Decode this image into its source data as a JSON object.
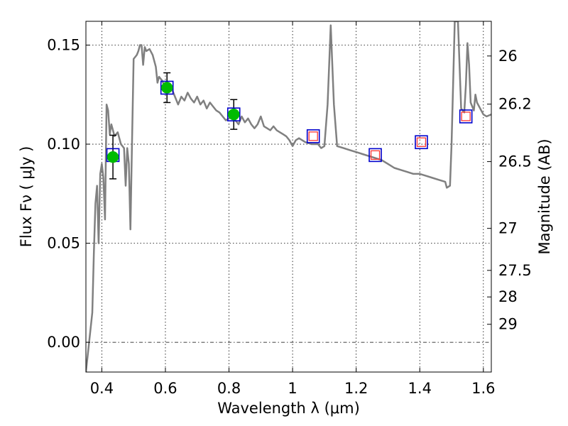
{
  "chart_data": {
    "type": "scatter",
    "xlabel": "Wavelength  λ (μm)",
    "ylabel": "Flux  Fν ( μJy )",
    "y2label": "Magnitude (AB)",
    "xlim": [
      0.35,
      1.625
    ],
    "ylim": [
      -0.015,
      0.162
    ],
    "x_ticks": [
      0.4,
      0.6,
      0.8,
      1.0,
      1.2,
      1.4,
      1.6
    ],
    "x_tick_labels": [
      "0.4",
      "0.6",
      "0.8",
      "1",
      "1.2",
      "1.4",
      "1.6"
    ],
    "y_ticks": [
      0.0,
      0.05,
      0.1,
      0.15
    ],
    "y_tick_labels": [
      "0.00",
      "0.05",
      "0.10",
      "0.15"
    ],
    "magnitude_ticks": [
      {
        "label": "26",
        "flux": 0.1445
      },
      {
        "label": "26.2",
        "flux": 0.1202
      },
      {
        "label": "26.5",
        "flux": 0.0912
      },
      {
        "label": "27",
        "flux": 0.0575
      },
      {
        "label": "27.5",
        "flux": 0.0363
      },
      {
        "label": "28",
        "flux": 0.0229
      },
      {
        "label": "29",
        "flux": 0.0091
      }
    ],
    "grid": true,
    "grid_x": [
      0.4,
      0.6,
      0.8,
      1.0,
      1.2,
      1.4,
      1.6
    ],
    "grid_y": [
      0.05,
      0.1,
      0.15
    ],
    "zero_line": 0.0,
    "series": [
      {
        "kind": "line",
        "color": "#808080",
        "points": [
          [
            0.35,
            -0.015
          ],
          [
            0.36,
            0.0
          ],
          [
            0.37,
            0.015
          ],
          [
            0.375,
            0.045
          ],
          [
            0.38,
            0.07
          ],
          [
            0.385,
            0.079
          ],
          [
            0.39,
            0.05
          ],
          [
            0.395,
            0.085
          ],
          [
            0.4,
            0.09
          ],
          [
            0.405,
            0.083
          ],
          [
            0.41,
            0.062
          ],
          [
            0.415,
            0.12
          ],
          [
            0.42,
            0.117
          ],
          [
            0.425,
            0.105
          ],
          [
            0.43,
            0.11
          ],
          [
            0.435,
            0.107
          ],
          [
            0.44,
            0.104
          ],
          [
            0.45,
            0.106
          ],
          [
            0.46,
            0.1
          ],
          [
            0.47,
            0.098
          ],
          [
            0.475,
            0.079
          ],
          [
            0.48,
            0.098
          ],
          [
            0.485,
            0.09
          ],
          [
            0.49,
            0.057
          ],
          [
            0.495,
            0.1
          ],
          [
            0.5,
            0.143
          ],
          [
            0.51,
            0.145
          ],
          [
            0.515,
            0.147
          ],
          [
            0.52,
            0.15
          ],
          [
            0.525,
            0.15
          ],
          [
            0.53,
            0.14
          ],
          [
            0.535,
            0.149
          ],
          [
            0.54,
            0.147
          ],
          [
            0.55,
            0.148
          ],
          [
            0.56,
            0.145
          ],
          [
            0.57,
            0.139
          ],
          [
            0.575,
            0.131
          ],
          [
            0.58,
            0.134
          ],
          [
            0.59,
            0.132
          ],
          [
            0.6,
            0.128
          ],
          [
            0.61,
            0.127
          ],
          [
            0.62,
            0.128
          ],
          [
            0.63,
            0.124
          ],
          [
            0.64,
            0.12
          ],
          [
            0.65,
            0.124
          ],
          [
            0.66,
            0.122
          ],
          [
            0.67,
            0.126
          ],
          [
            0.68,
            0.123
          ],
          [
            0.69,
            0.121
          ],
          [
            0.7,
            0.124
          ],
          [
            0.71,
            0.12
          ],
          [
            0.72,
            0.122
          ],
          [
            0.73,
            0.118
          ],
          [
            0.74,
            0.121
          ],
          [
            0.75,
            0.119
          ],
          [
            0.76,
            0.117
          ],
          [
            0.77,
            0.116
          ],
          [
            0.78,
            0.114
          ],
          [
            0.79,
            0.112
          ],
          [
            0.8,
            0.113
          ],
          [
            0.81,
            0.114
          ],
          [
            0.82,
            0.112
          ],
          [
            0.83,
            0.11
          ],
          [
            0.84,
            0.114
          ],
          [
            0.85,
            0.111
          ],
          [
            0.86,
            0.113
          ],
          [
            0.87,
            0.11
          ],
          [
            0.88,
            0.108
          ],
          [
            0.89,
            0.11
          ],
          [
            0.9,
            0.114
          ],
          [
            0.91,
            0.109
          ],
          [
            0.92,
            0.108
          ],
          [
            0.93,
            0.107
          ],
          [
            0.94,
            0.109
          ],
          [
            0.95,
            0.107
          ],
          [
            0.96,
            0.106
          ],
          [
            0.97,
            0.105
          ],
          [
            0.98,
            0.104
          ],
          [
            0.99,
            0.102
          ],
          [
            1.0,
            0.099
          ],
          [
            1.01,
            0.102
          ],
          [
            1.02,
            0.103
          ],
          [
            1.04,
            0.101
          ],
          [
            1.06,
            0.1
          ],
          [
            1.08,
            0.1
          ],
          [
            1.09,
            0.098
          ],
          [
            1.1,
            0.099
          ],
          [
            1.11,
            0.12
          ],
          [
            1.12,
            0.16
          ],
          [
            1.13,
            0.12
          ],
          [
            1.14,
            0.099
          ],
          [
            1.16,
            0.098
          ],
          [
            1.18,
            0.097
          ],
          [
            1.2,
            0.096
          ],
          [
            1.22,
            0.095
          ],
          [
            1.24,
            0.094
          ],
          [
            1.26,
            0.093
          ],
          [
            1.28,
            0.092
          ],
          [
            1.3,
            0.09
          ],
          [
            1.32,
            0.088
          ],
          [
            1.34,
            0.087
          ],
          [
            1.36,
            0.086
          ],
          [
            1.38,
            0.085
          ],
          [
            1.4,
            0.085
          ],
          [
            1.42,
            0.084
          ],
          [
            1.44,
            0.083
          ],
          [
            1.46,
            0.082
          ],
          [
            1.48,
            0.081
          ],
          [
            1.485,
            0.078
          ],
          [
            1.495,
            0.079
          ],
          [
            1.5,
            0.1
          ],
          [
            1.51,
            0.162
          ],
          [
            1.52,
            0.162
          ],
          [
            1.53,
            0.118
          ],
          [
            1.54,
            0.116
          ],
          [
            1.545,
            0.13
          ],
          [
            1.55,
            0.151
          ],
          [
            1.555,
            0.14
          ],
          [
            1.56,
            0.121
          ],
          [
            1.57,
            0.117
          ],
          [
            1.575,
            0.125
          ],
          [
            1.58,
            0.121
          ],
          [
            1.59,
            0.118
          ],
          [
            1.6,
            0.115
          ],
          [
            1.61,
            0.114
          ],
          [
            1.625,
            0.115
          ]
        ]
      },
      {
        "kind": "filled-circle",
        "color": "#00bb00",
        "points": [
          {
            "x": 0.435,
            "y": 0.0935,
            "err": 0.011
          },
          {
            "x": 0.605,
            "y": 0.1285,
            "err": 0.0075
          },
          {
            "x": 0.815,
            "y": 0.115,
            "err": 0.0075
          }
        ]
      },
      {
        "kind": "open-square",
        "color": "#0000cc",
        "points": [
          {
            "x": 0.435,
            "y": 0.0945
          },
          {
            "x": 0.605,
            "y": 0.1285
          },
          {
            "x": 0.815,
            "y": 0.115
          },
          {
            "x": 1.065,
            "y": 0.104
          },
          {
            "x": 1.26,
            "y": 0.0945
          },
          {
            "x": 1.405,
            "y": 0.101
          },
          {
            "x": 1.545,
            "y": 0.114
          }
        ]
      },
      {
        "kind": "small-open-square",
        "color": "#ff3333",
        "points": [
          {
            "x": 1.065,
            "y": 0.104
          },
          {
            "x": 1.26,
            "y": 0.0945
          },
          {
            "x": 1.405,
            "y": 0.101
          },
          {
            "x": 1.545,
            "y": 0.114
          }
        ]
      }
    ]
  }
}
